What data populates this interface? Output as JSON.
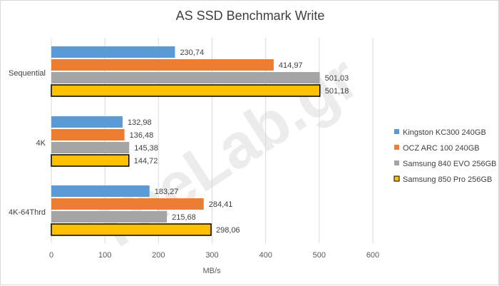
{
  "chart_data": {
    "type": "bar",
    "orientation": "horizontal",
    "title": "AS SSD Benchmark Write",
    "xlabel": "MB/s",
    "ylabel": "",
    "xlim": [
      0,
      600
    ],
    "xticks": [
      "0",
      "100",
      "200",
      "300",
      "400",
      "500",
      "600"
    ],
    "grid": true,
    "legend_position": "right",
    "categories": [
      "Sequential",
      "4K",
      "4K-64Thrd"
    ],
    "series": [
      {
        "name": "Kingston KC300 240GB",
        "color": "#5b9bd5",
        "values": [
          230.74,
          132.98,
          183.27
        ],
        "labels": [
          "230,74",
          "132,98",
          "183,27"
        ]
      },
      {
        "name": "OCZ ARC 100 240GB",
        "color": "#ed7d31",
        "values": [
          414.97,
          136.48,
          284.41
        ],
        "labels": [
          "414,97",
          "136,48",
          "284,41"
        ]
      },
      {
        "name": "Samsung 840 EVO 256GB",
        "color": "#a5a5a5",
        "values": [
          501.03,
          145.38,
          215.68
        ],
        "labels": [
          "501,03",
          "145,38",
          "215,68"
        ]
      },
      {
        "name": "Samsung 850 Pro 256GB",
        "color": "#ffc000",
        "outlined": true,
        "values": [
          501.18,
          144.72,
          298.06
        ],
        "labels": [
          "501,18",
          "144,72",
          "298,06"
        ]
      }
    ]
  },
  "watermark": {
    "text": "TheLab.gr"
  }
}
